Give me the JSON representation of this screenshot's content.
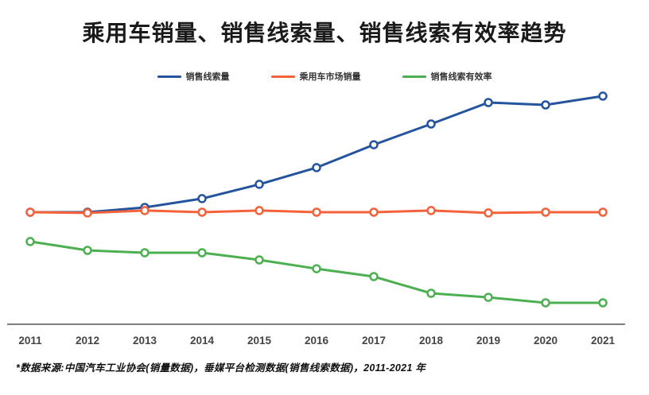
{
  "chart": {
    "title": "乘用车销量、销售线索量、销售线索有效率趋势"
  },
  "footer": {
    "note": "*数据来源:中国汽车工业协会(销量数据)，垂媒平台检测数据(销售线索数据)，2011-2021 年"
  },
  "colors": {
    "series_blue": "#24549E",
    "series_orange": "#F4613B",
    "series_green": "#4CB050",
    "axis_line": "#555555",
    "tick_label": "#444444",
    "title_text": "#1a1a1a",
    "legend_text": "#333333",
    "background": "#ffffff"
  },
  "chart_data": {
    "type": "line",
    "title": "乘用车销量、销售线索量、销售线索有效率趋势",
    "x": [
      "2011",
      "2012",
      "2013",
      "2014",
      "2015",
      "2016",
      "2017",
      "2018",
      "2019",
      "2020",
      "2021"
    ],
    "series": [
      {
        "name": "销售线索量",
        "color": "#24549E",
        "values": [
          47,
          47,
          49,
          52.7,
          58.7,
          65.7,
          75.3,
          84,
          93,
          92,
          95.7
        ]
      },
      {
        "name": "乘用车市场销量",
        "color": "#F4613B",
        "values": [
          47,
          46.7,
          47.7,
          47,
          47.7,
          47,
          47,
          47.7,
          46.7,
          47,
          47
        ]
      },
      {
        "name": "销售线索有效率",
        "color": "#4CB050",
        "values": [
          34.7,
          31,
          30,
          30,
          27,
          23.3,
          20,
          13,
          11.3,
          9,
          9
        ]
      }
    ],
    "xlabel": "",
    "ylabel": "",
    "ylim": [
      0,
      110
    ],
    "y_axis_visible": false,
    "grid": false,
    "legend_position": "top",
    "marker": "open-circle",
    "values_note": "y-axis unlabeled in source; values estimated on relative 0-100 scale from pixel positions"
  }
}
